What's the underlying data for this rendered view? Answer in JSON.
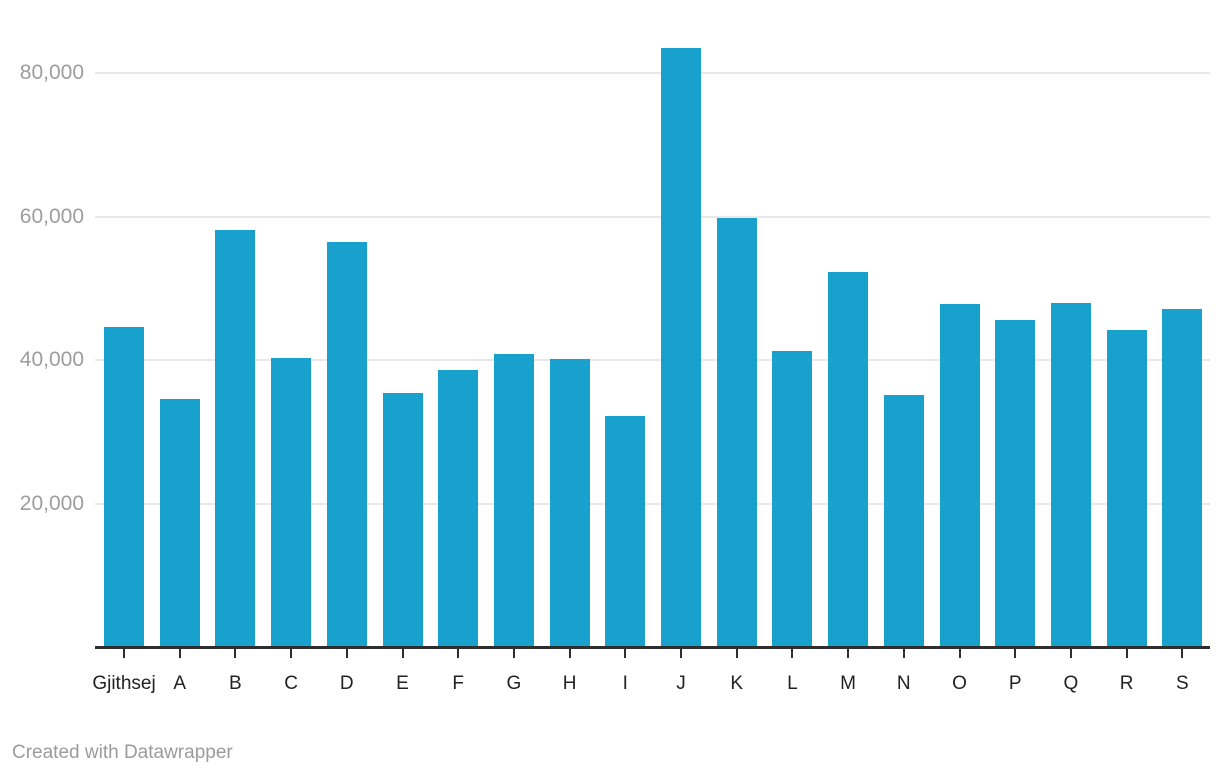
{
  "chart_data": {
    "type": "bar",
    "title": "",
    "xlabel": "",
    "ylabel": "",
    "categories": [
      "Gjithsej",
      "A",
      "B",
      "C",
      "D",
      "E",
      "F",
      "G",
      "H",
      "I",
      "J",
      "K",
      "L",
      "M",
      "N",
      "O",
      "P",
      "Q",
      "R",
      "S"
    ],
    "values": [
      44600,
      34600,
      58100,
      40300,
      56400,
      35400,
      38600,
      40900,
      40100,
      32200,
      83500,
      59800,
      41200,
      52200,
      35100,
      47800,
      45600,
      48000,
      44200,
      47100
    ],
    "ylim": [
      0,
      86500
    ],
    "grid": true,
    "legend_position": "none",
    "y_ticks": [
      {
        "value": 20000,
        "label": "20,000"
      },
      {
        "value": 40000,
        "label": "40,000"
      },
      {
        "value": 60000,
        "label": "60,000"
      },
      {
        "value": 80000,
        "label": "80,000"
      }
    ]
  },
  "colors": {
    "bar": "#18a1cd",
    "grid_line": "#e8e8e8",
    "axis_line": "#2e2e2e",
    "y_tick_label": "#9d9d9d",
    "category_label": "#222222",
    "footer_text": "#9b9b9b",
    "background": "#ffffff"
  },
  "footer": {
    "attribution": "Created with Datawrapper"
  }
}
